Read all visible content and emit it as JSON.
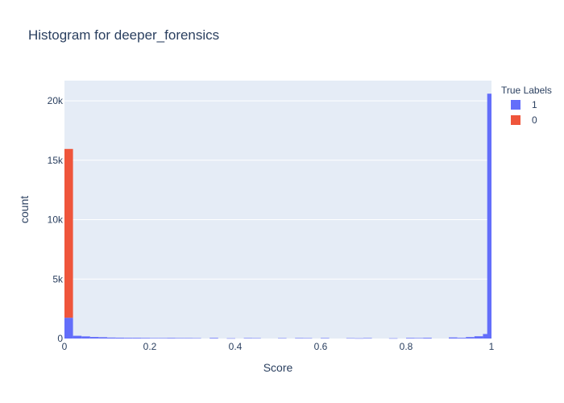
{
  "chart_data": {
    "type": "bar",
    "title": "Histogram for deeper_forensics",
    "xlabel": "Score",
    "ylabel": "count",
    "xlim": [
      0,
      1
    ],
    "ylim": [
      0,
      21700
    ],
    "xticks": [
      "0",
      "0.2",
      "0.4",
      "0.6",
      "0.8",
      "1"
    ],
    "xtick_values": [
      0,
      0.2,
      0.4,
      0.6,
      0.8,
      1
    ],
    "yticks": [
      "0",
      "5k",
      "10k",
      "15k",
      "20k"
    ],
    "ytick_values": [
      0,
      5000,
      10000,
      15000,
      20000
    ],
    "grid": true,
    "barmode": "stack",
    "bin_width": 0.02,
    "legend": {
      "title": "True Labels",
      "placement": "right"
    },
    "bins_start": [
      0,
      0.02,
      0.04,
      0.06,
      0.08,
      0.1,
      0.12,
      0.14,
      0.16,
      0.18,
      0.2,
      0.22,
      0.24,
      0.26,
      0.28,
      0.3,
      0.32,
      0.34,
      0.36,
      0.38,
      0.4,
      0.42,
      0.44,
      0.46,
      0.48,
      0.5,
      0.52,
      0.54,
      0.56,
      0.58,
      0.6,
      0.62,
      0.64,
      0.66,
      0.68,
      0.7,
      0.72,
      0.74,
      0.76,
      0.78,
      0.8,
      0.82,
      0.84,
      0.86,
      0.88,
      0.9,
      0.92,
      0.94,
      0.96,
      0.98
    ],
    "series": [
      {
        "name": "1",
        "color": "#636efa",
        "values": [
          1750,
          230,
          180,
          130,
          110,
          80,
          70,
          60,
          60,
          50,
          40,
          40,
          50,
          40,
          40,
          30,
          0,
          50,
          0,
          20,
          0,
          40,
          30,
          0,
          0,
          30,
          0,
          40,
          30,
          0,
          40,
          0,
          0,
          30,
          20,
          40,
          0,
          0,
          20,
          0,
          50,
          40,
          60,
          0,
          0,
          90,
          60,
          120,
          190,
          380
        ]
      },
      {
        "name": "0",
        "color": "#ef553b",
        "values": [
          14200,
          0,
          0,
          0,
          0,
          0,
          0,
          0,
          0,
          0,
          0,
          0,
          0,
          0,
          0,
          0,
          0,
          0,
          0,
          0,
          0,
          0,
          0,
          0,
          0,
          0,
          0,
          0,
          0,
          0,
          0,
          0,
          0,
          0,
          0,
          0,
          0,
          0,
          0,
          0,
          0,
          0,
          0,
          0,
          0,
          0,
          0,
          0,
          0,
          0
        ]
      }
    ],
    "last_bin": {
      "x": 1.0,
      "series": "1",
      "value": 20600
    }
  }
}
